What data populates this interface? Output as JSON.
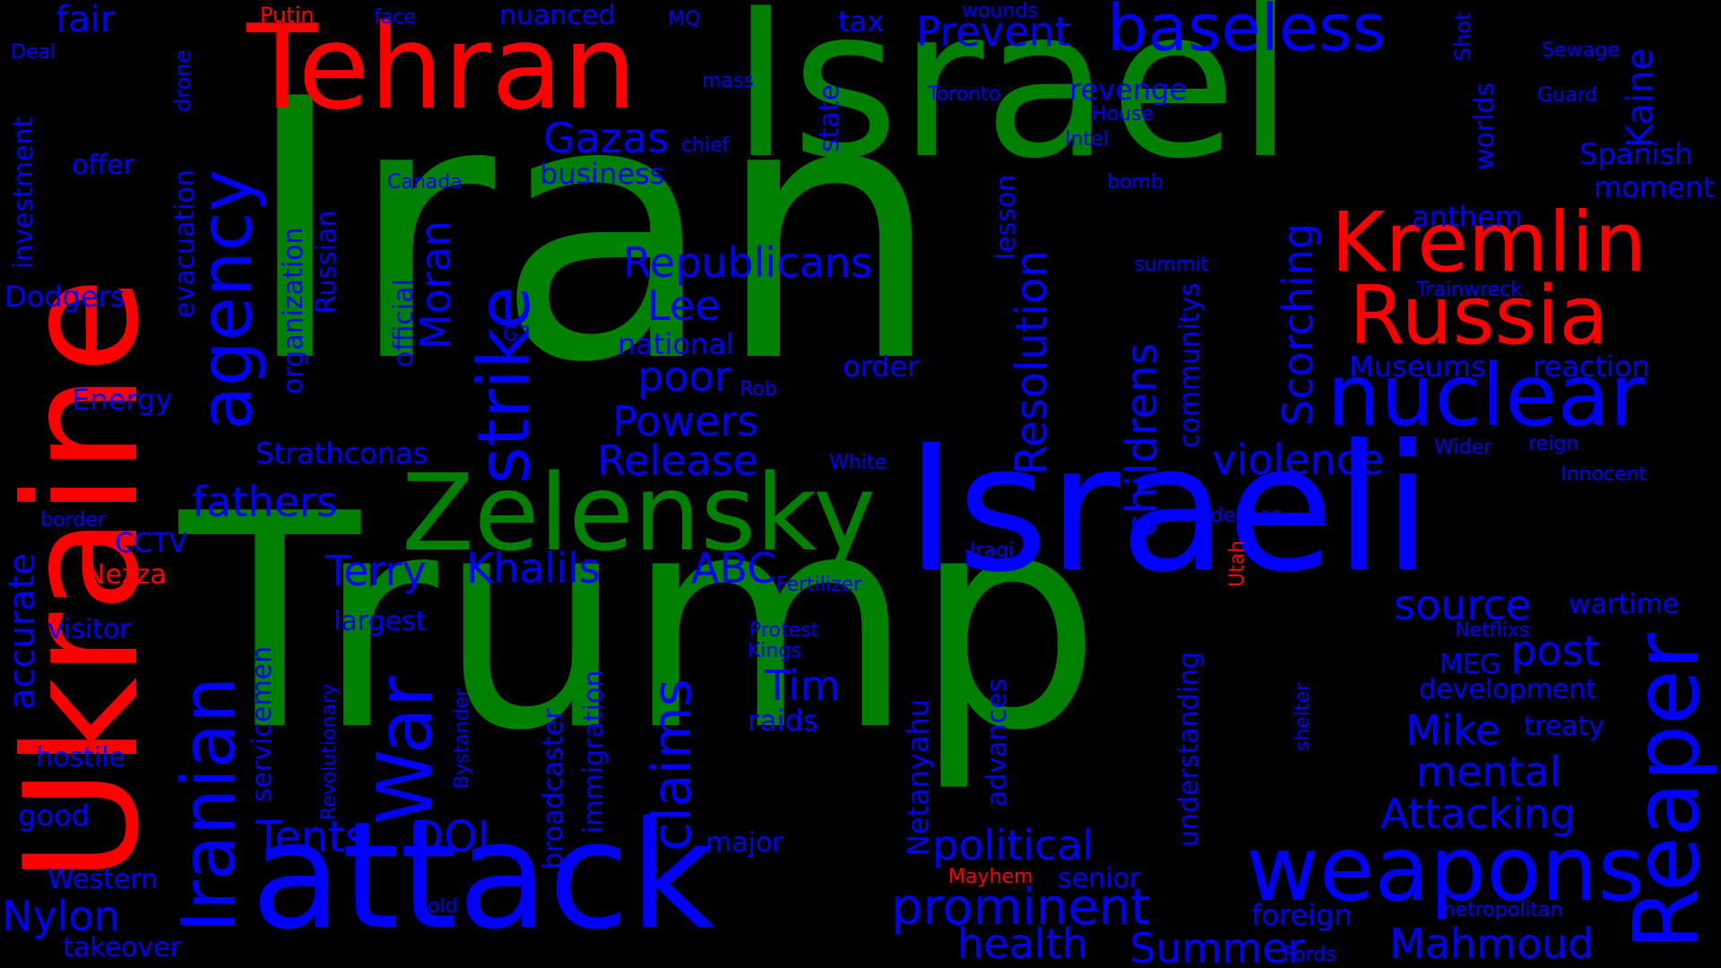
{
  "colors": {
    "background": "#000000",
    "green": "#008000",
    "red": "#ff0000",
    "blue": "#0000ff"
  },
  "words": {
    "iran": "Iran",
    "trump": "Trump",
    "israel": "Israel",
    "israeli": "Israeli",
    "ukraine": "Ukraine",
    "tehran": "Tehran",
    "attack": "attack",
    "zelensky": "Zelensky",
    "kremlin": "Kremlin",
    "russia": "Russia",
    "nuclear": "nuclear",
    "weapons": "weapons",
    "reaper": "Reaper",
    "baseless": "baseless",
    "prevent": "Prevent",
    "strike": "strike",
    "war": "War",
    "iranian": "Iranian",
    "agency": "agency",
    "gazas": "Gazas",
    "business": "business",
    "republicans": "Republicans",
    "lee": "Lee",
    "national": "national",
    "poor": "poor",
    "powers": "Powers",
    "release": "Release",
    "fathers": "fathers",
    "terry": "Terry",
    "khalils": "Khalils",
    "abc": "ABC",
    "tents": "Tents",
    "doj": "DOJ",
    "prominent": "prominent",
    "political": "political",
    "health": "health",
    "summer": "Summer",
    "mahmoud": "Mahmoud",
    "attacking": "Attacking",
    "mental": "mental",
    "mike": "Mike",
    "post": "post",
    "source": "source",
    "violence": "violence",
    "childrens": "childrens",
    "resolution": "Resolution",
    "scorching": "Scorching",
    "claims": "claims",
    "tim": "Tim",
    "fair": "fair",
    "putin": "Putin",
    "face": "face",
    "nuanced": "nuanced",
    "mq": "MQ",
    "tax": "tax",
    "wounds": "wounds",
    "deal": "Deal",
    "mass": "mass",
    "chief": "chief",
    "toronto": "Toronto",
    "house": "House",
    "revenge": "revenge",
    "intel": "Intel",
    "sewage": "Sewage",
    "guard": "Guard",
    "spanish": "Spanish",
    "moment": "moment",
    "anthem": "anthem",
    "kaine": "Kaine",
    "shot": "Shot",
    "worlds": "worlds",
    "state": "state",
    "canada": "Canada",
    "bomb": "bomb",
    "summit": "summit",
    "trainwreck": "Trainwreck",
    "museums": "Museums",
    "reaction": "reaction",
    "offer": "offer",
    "investment": "investment",
    "drone": "drone",
    "evacuation": "evacuation",
    "dodgers": "Dodgers",
    "energy": "Energy",
    "organization": "organization",
    "russian": "Russian",
    "official": "official",
    "moran": "Moran",
    "g7": "G7",
    "order": "order",
    "rob": "Rob",
    "lesson": "lesson",
    "communitys": "communitys",
    "strathconas": "Strathconas",
    "white": "White",
    "wider": "Wider",
    "reign": "reign",
    "innocent": "Innocent",
    "border": "border",
    "cctv": "CCTV",
    "accurate": "accurate",
    "nezza": "Nezza",
    "sidelines": "sidelines",
    "utah": "Utah",
    "iraqi": "Iraqi",
    "fertilizer": "Fertilizer",
    "wartime": "wartime",
    "largest": "largest",
    "visitor": "visitor",
    "servicemen": "servicemen",
    "protest": "Protest",
    "kings": "Kings",
    "netflixs": "Netflixs",
    "meg": "MEG",
    "development": "development",
    "treaty": "treaty",
    "hostile": "hostile",
    "revolutionary": "Revolutionary",
    "bystander": "Bystander",
    "broadcaster": "broadcaster",
    "immigration": "immigration",
    "raids": "raids",
    "netanyahu": "Netanyahu",
    "advances": "advances",
    "understanding": "understanding",
    "shelter": "shelter",
    "good": "good",
    "major": "major",
    "western": "Western",
    "mayhem": "Mayhem",
    "senior": "senior",
    "nylon": "Nylon",
    "old": "old",
    "foreign": "foreign",
    "metropolitan": "metropolitan",
    "takeover": "takeover",
    "fords": "Fords"
  }
}
